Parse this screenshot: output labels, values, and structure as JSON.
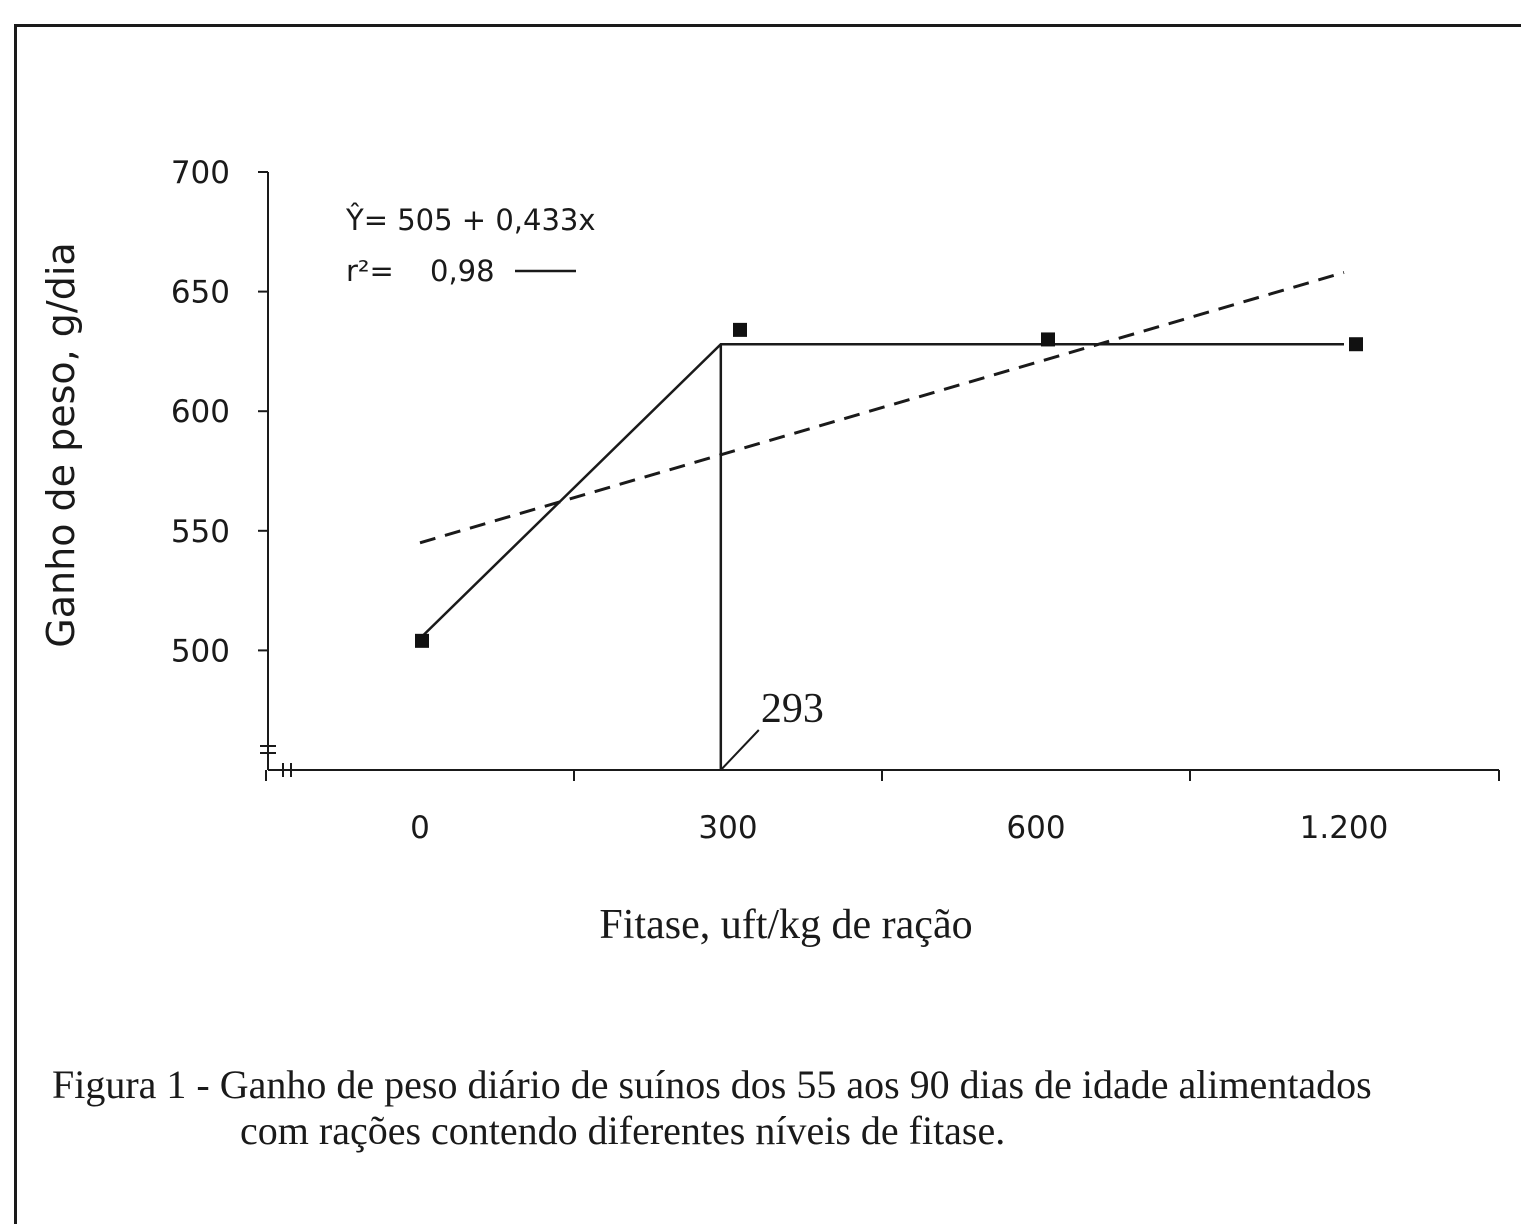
{
  "chart_data": {
    "type": "line",
    "ylabel": "Ganho de peso, g/dia",
    "xlabel": "Fitase,  uft/kg de ração",
    "ylim": [
      450,
      700
    ],
    "y_ticks": [
      500,
      550,
      600,
      650,
      700
    ],
    "y_tick_labels": [
      "500",
      "550",
      "600",
      "650",
      "700"
    ],
    "categories": [
      "0",
      "300",
      "600",
      "1.200"
    ],
    "x_values": [
      0,
      300,
      600,
      1200
    ],
    "points": {
      "x": [
        0,
        300,
        600,
        1200
      ],
      "y": [
        504,
        634,
        630,
        628
      ]
    },
    "plateau_model": {
      "breakpoint_x": 293,
      "plateau_y": 628,
      "start_y": 505
    },
    "linear_fit": {
      "equation": "Ŷ= 505 + 0,433x",
      "r2_prefix": "r²=",
      "r2": "0,98",
      "start_y": 545,
      "end_y": 658
    },
    "breakpoint_label": "293",
    "grid": false,
    "legend": "none"
  },
  "caption": {
    "line1": "Figura 1 - Ganho de peso diário de suínos dos 55 aos 90 dias de idade alimentados",
    "line2": "com rações contendo diferentes níveis de fitase."
  }
}
